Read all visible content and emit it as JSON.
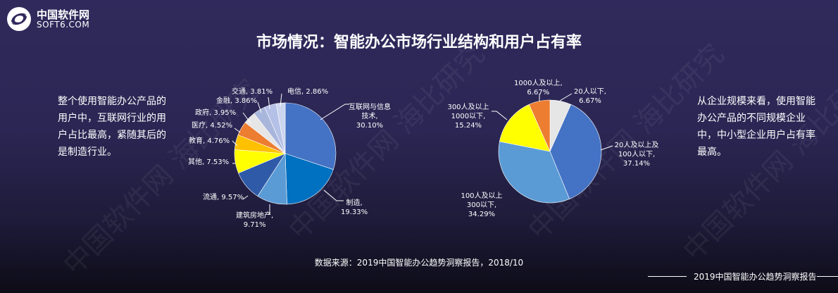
{
  "logo": {
    "cn": "中国软件网",
    "en": "SOFT6.COM"
  },
  "title": "市场情况：智能办公市场行业结构和用户占有率",
  "left_text": "整个使用智能办公产品的用户中，互联网行业的用户占比最高，紧随其后的是制造行业。",
  "right_text": "从企业规模来看，使用智能办公产品的不同规模企业中，中小型企业用户占有率最高。",
  "watermark": "中国软件网 海比研究",
  "source": "数据来源：2019中国智能办公趋势洞察报告，2018/10",
  "footer": "2019中国智能办公趋势洞察报告",
  "chart_data": [
    {
      "type": "pie",
      "start": "top",
      "direction": "clockwise",
      "slices": [
        {
          "label": "互联网与信息技术",
          "value": 30.1,
          "text": "30.10%",
          "color": "#4472C4"
        },
        {
          "label": "制造",
          "value": 19.33,
          "text": "19.33%",
          "color": "#0070C0"
        },
        {
          "label": "建筑房地产",
          "value": 9.71,
          "text": "9.71%",
          "color": "#5B9BD5"
        },
        {
          "label": "流通",
          "value": 9.57,
          "text": "9.57%",
          "color": "#2F5AA8"
        },
        {
          "label": "其他",
          "value": 7.53,
          "text": "7.53%",
          "color": "#FFFF00"
        },
        {
          "label": "教育",
          "value": 4.76,
          "text": "4.76%",
          "color": "#FFC000"
        },
        {
          "label": "医疗",
          "value": 4.52,
          "text": "4.52%",
          "color": "#ED7D31"
        },
        {
          "label": "政府",
          "value": 3.95,
          "text": "3.95%",
          "color": "#E7E6E6"
        },
        {
          "label": "金融",
          "value": 3.86,
          "text": "3.86%",
          "color": "#A9B6DC"
        },
        {
          "label": "交通",
          "value": 3.81,
          "text": "3.81%",
          "color": "#B4C0E6"
        },
        {
          "label": "电信",
          "value": 2.86,
          "text": "2.86%",
          "color": "#CCD5EE"
        }
      ]
    },
    {
      "type": "pie",
      "start": "top",
      "direction": "clockwise",
      "slices": [
        {
          "label": "20人以下",
          "value": 6.67,
          "text": "6.67%",
          "color": "#E7E6E6"
        },
        {
          "label": "20人及以上及100人以下",
          "value": 37.14,
          "text": "37.14%",
          "color": "#4472C4"
        },
        {
          "label": "100人及以上300以下",
          "value": 34.29,
          "text": "34.29%",
          "color": "#5B9BD5"
        },
        {
          "label": "300人及以上1000以下",
          "value": 15.24,
          "text": "15.24%",
          "color": "#FFFF00"
        },
        {
          "label": "1000人及以上",
          "value": 6.67,
          "text": "6.67%",
          "color": "#ED7D31"
        }
      ]
    }
  ]
}
